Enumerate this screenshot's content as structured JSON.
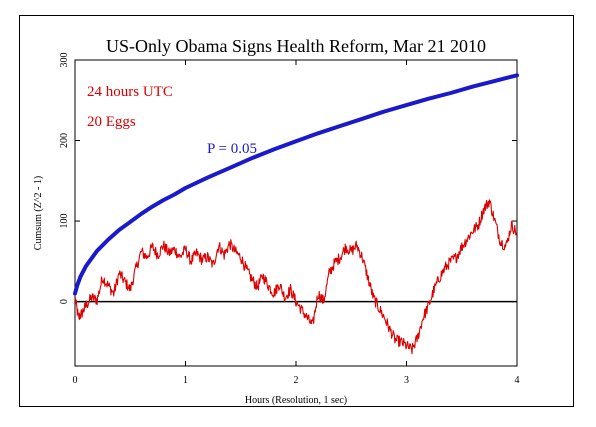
{
  "chart_data": {
    "type": "line",
    "title": "US-Only Obama Signs Health Reform, Mar 21 2010",
    "xlabel": "Hours (Resolution, 1 sec)",
    "ylabel": "Cumsum (Z^2 - 1)",
    "xlim": [
      0,
      4
    ],
    "ylim": [
      -80,
      300
    ],
    "x_ticks": [
      0,
      1,
      2,
      3,
      4
    ],
    "y_ticks": [
      0,
      100,
      200,
      300
    ],
    "grid": false,
    "annotations": [
      {
        "text": "24 hours UTC",
        "color": "#dd0000"
      },
      {
        "text": "20 Eggs",
        "color": "#dd0000"
      },
      {
        "text": "P = 0.05",
        "color": "#1a1acc"
      }
    ],
    "reference_line": {
      "y": 0,
      "color": "#000000"
    },
    "series": [
      {
        "role": "probability-envelope",
        "color": "#1a1acc",
        "x": [
          0,
          0.02,
          0.05,
          0.1,
          0.2,
          0.3,
          0.4,
          0.5,
          0.6,
          0.7,
          0.8,
          0.9,
          1.0,
          1.2,
          1.4,
          1.6,
          1.8,
          2.0,
          2.2,
          2.4,
          2.6,
          2.8,
          3.0,
          3.2,
          3.4,
          3.6,
          3.8,
          4.0
        ],
        "y": [
          10,
          20,
          31,
          44,
          63,
          77,
          89,
          99,
          109,
          118,
          126,
          133,
          141,
          154,
          166,
          178,
          189,
          199,
          209,
          218,
          227,
          236,
          244,
          252,
          259,
          267,
          274,
          281
        ]
      },
      {
        "role": "cumulative-deviation",
        "color": "#dd0000",
        "x": [
          0,
          0.03,
          0.06,
          0.1,
          0.15,
          0.2,
          0.25,
          0.3,
          0.35,
          0.4,
          0.45,
          0.5,
          0.55,
          0.6,
          0.65,
          0.7,
          0.75,
          0.8,
          0.85,
          0.9,
          0.95,
          1.0,
          1.05,
          1.1,
          1.15,
          1.2,
          1.25,
          1.3,
          1.35,
          1.4,
          1.45,
          1.5,
          1.55,
          1.6,
          1.65,
          1.7,
          1.75,
          1.8,
          1.85,
          1.9,
          1.95,
          2.0,
          2.05,
          2.1,
          2.15,
          2.2,
          2.25,
          2.3,
          2.35,
          2.4,
          2.45,
          2.5,
          2.55,
          2.6,
          2.65,
          2.7,
          2.75,
          2.8,
          2.85,
          2.9,
          2.95,
          3.0,
          3.05,
          3.1,
          3.15,
          3.2,
          3.25,
          3.3,
          3.35,
          3.4,
          3.45,
          3.5,
          3.55,
          3.6,
          3.65,
          3.7,
          3.75,
          3.8,
          3.85,
          3.9,
          3.95,
          4.0
        ],
        "y": [
          5,
          -20,
          -15,
          -5,
          5,
          2,
          30,
          20,
          10,
          35,
          25,
          15,
          40,
          62,
          55,
          68,
          58,
          70,
          60,
          65,
          55,
          65,
          50,
          60,
          52,
          55,
          45,
          70,
          58,
          72,
          62,
          55,
          40,
          28,
          18,
          32,
          20,
          10,
          22,
          5,
          15,
          0,
          -10,
          -20,
          -30,
          10,
          0,
          35,
          48,
          55,
          68,
          62,
          70,
          55,
          30,
          5,
          -8,
          -20,
          -35,
          -48,
          -50,
          -55,
          -60,
          -45,
          -20,
          -5,
          15,
          30,
          42,
          50,
          55,
          68,
          78,
          88,
          95,
          115,
          125,
          100,
          75,
          68,
          95,
          85
        ]
      }
    ]
  }
}
